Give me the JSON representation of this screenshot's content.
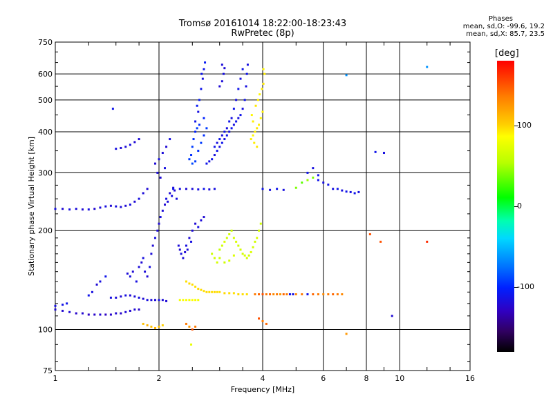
{
  "title_line1": "Tromsø 20161014 18:22:00-18:23:43",
  "title_line2": "RwPretec (8p)",
  "phase_info": {
    "heading": "Phases",
    "o_line": "mean, sd,O: -99.6, 19.2",
    "x_line": "mean, sd,X: 85.7, 23.5"
  },
  "colorbar": {
    "unit": "[deg]",
    "ticks": [
      {
        "label": "100",
        "value": 100
      },
      {
        "label": "0",
        "value": 0
      },
      {
        "label": "-100",
        "value": -100
      }
    ],
    "range": [
      -180,
      180
    ],
    "colors": [
      "#000000",
      "#300060",
      "#3000c0",
      "#0020ff",
      "#0070ff",
      "#00d8ff",
      "#00ffb0",
      "#00ff00",
      "#b8ff00",
      "#ffff00",
      "#ffd000",
      "#ff7a00",
      "#ff0000"
    ]
  },
  "chart_data": {
    "type": "scatter",
    "title": "Tromsø 20161014 18:22:00-18:23:43",
    "subtitle": "RwPretec (8p)",
    "xlabel": "Frequency [MHz]",
    "ylabel": "Stationary phase Virtual Height [km]",
    "xscale": "log2",
    "yscale": "log",
    "xlim": [
      1,
      16
    ],
    "ylim": [
      75,
      750
    ],
    "x_ticks": [
      {
        "label": "1",
        "value": 1
      },
      {
        "label": "2",
        "value": 2
      },
      {
        "label": "4",
        "value": 4
      },
      {
        "label": "6",
        "value": 6
      },
      {
        "label": "8",
        "value": 8
      },
      {
        "label": "10",
        "value": 10
      },
      {
        "label": "16",
        "value": 16
      }
    ],
    "x_gridlines": [
      2,
      4,
      6,
      8,
      10
    ],
    "y_ticks": [
      {
        "label": "75",
        "value": 75
      },
      {
        "label": "100",
        "value": 100
      },
      {
        "label": "200",
        "value": 200
      },
      {
        "label": "300",
        "value": 300
      },
      {
        "label": "400",
        "value": 400
      },
      {
        "label": "500",
        "value": 500
      },
      {
        "label": "600",
        "value": 600
      },
      {
        "label": "750",
        "value": 750
      }
    ],
    "y_gridlines": [
      100,
      200,
      300,
      400,
      500,
      600
    ],
    "grid": true,
    "points": [
      [
        1.0,
        115,
        -110
      ],
      [
        1.05,
        114,
        -112
      ],
      [
        1.1,
        113,
        -110
      ],
      [
        1.15,
        112,
        -115
      ],
      [
        1.2,
        112,
        -112
      ],
      [
        1.25,
        111,
        -118
      ],
      [
        1.3,
        111,
        -115
      ],
      [
        1.35,
        111,
        -112
      ],
      [
        1.4,
        111,
        -118
      ],
      [
        1.45,
        111,
        -115
      ],
      [
        1.5,
        112,
        -112
      ],
      [
        1.55,
        112,
        -115
      ],
      [
        1.6,
        113,
        -110
      ],
      [
        1.65,
        114,
        -112
      ],
      [
        1.7,
        115,
        -110
      ],
      [
        1.75,
        115,
        -115
      ],
      [
        1.0,
        118,
        -105
      ],
      [
        1.05,
        119,
        -102
      ],
      [
        1.08,
        120,
        -100
      ],
      [
        1.0,
        233,
        -105
      ],
      [
        1.05,
        233,
        -110
      ],
      [
        1.1,
        232,
        -105
      ],
      [
        1.15,
        233,
        -108
      ],
      [
        1.2,
        232,
        -110
      ],
      [
        1.25,
        232,
        -105
      ],
      [
        1.3,
        233,
        -112
      ],
      [
        1.35,
        235,
        -108
      ],
      [
        1.4,
        237,
        -105
      ],
      [
        1.45,
        238,
        -110
      ],
      [
        1.5,
        237,
        -105
      ],
      [
        1.55,
        236,
        -108
      ],
      [
        1.6,
        238,
        -110
      ],
      [
        1.65,
        240,
        -105
      ],
      [
        1.7,
        245,
        -110
      ],
      [
        1.75,
        250,
        -105
      ],
      [
        1.8,
        260,
        -108
      ],
      [
        1.85,
        268,
        -110
      ],
      [
        1.5,
        355,
        -105
      ],
      [
        1.55,
        357,
        -110
      ],
      [
        1.6,
        360,
        -108
      ],
      [
        1.65,
        365,
        -105
      ],
      [
        1.7,
        372,
        -110
      ],
      [
        1.75,
        380,
        -108
      ],
      [
        1.47,
        470,
        -100
      ],
      [
        1.45,
        125,
        -105
      ],
      [
        1.5,
        125,
        -108
      ],
      [
        1.55,
        126,
        -110
      ],
      [
        1.6,
        127,
        -105
      ],
      [
        1.65,
        127,
        -110
      ],
      [
        1.7,
        126,
        -108
      ],
      [
        1.75,
        125,
        -105
      ],
      [
        1.8,
        124,
        -110
      ],
      [
        1.85,
        123,
        -105
      ],
      [
        1.9,
        123,
        -108
      ],
      [
        1.95,
        123,
        -110
      ],
      [
        2.0,
        123,
        -105
      ],
      [
        2.05,
        123,
        -108
      ],
      [
        2.1,
        122,
        -110
      ],
      [
        1.25,
        127,
        -100
      ],
      [
        1.28,
        130,
        -105
      ],
      [
        1.32,
        137,
        -110
      ],
      [
        1.35,
        140,
        -105
      ],
      [
        1.4,
        145,
        -100
      ],
      [
        1.62,
        148,
        -108
      ],
      [
        1.65,
        145,
        -105
      ],
      [
        1.68,
        150,
        -110
      ],
      [
        1.72,
        140,
        -105
      ],
      [
        1.75,
        155,
        -108
      ],
      [
        1.78,
        160,
        -110
      ],
      [
        1.8,
        165,
        -105
      ],
      [
        1.82,
        150,
        -108
      ],
      [
        1.85,
        145,
        -110
      ],
      [
        1.88,
        155,
        -105
      ],
      [
        1.9,
        170,
        -108
      ],
      [
        1.92,
        180,
        -110
      ],
      [
        1.95,
        190,
        -105
      ],
      [
        1.98,
        200,
        -108
      ],
      [
        2.0,
        210,
        -110
      ],
      [
        2.02,
        220,
        -105
      ],
      [
        2.05,
        230,
        -108
      ],
      [
        2.08,
        240,
        -110
      ],
      [
        2.1,
        250,
        -105
      ],
      [
        2.12,
        245,
        -108
      ],
      [
        2.15,
        260,
        -110
      ],
      [
        2.18,
        255,
        -105
      ],
      [
        2.2,
        270,
        -108
      ],
      [
        2.22,
        265,
        -110
      ],
      [
        2.25,
        250,
        -105
      ],
      [
        2.28,
        180,
        -108
      ],
      [
        2.3,
        175,
        -110
      ],
      [
        2.32,
        170,
        -105
      ],
      [
        2.35,
        165,
        -108
      ],
      [
        2.38,
        172,
        -110
      ],
      [
        2.4,
        180,
        -105
      ],
      [
        2.42,
        175,
        -108
      ],
      [
        2.45,
        190,
        -110
      ],
      [
        2.48,
        185,
        -105
      ],
      [
        2.5,
        200,
        -108
      ],
      [
        2.55,
        210,
        -110
      ],
      [
        2.6,
        205,
        -105
      ],
      [
        2.65,
        215,
        -108
      ],
      [
        2.7,
        220,
        -110
      ],
      [
        1.95,
        320,
        -110
      ],
      [
        2.0,
        330,
        -105
      ],
      [
        2.05,
        345,
        -108
      ],
      [
        2.1,
        360,
        -110
      ],
      [
        2.15,
        380,
        -105
      ],
      [
        1.98,
        300,
        -108
      ],
      [
        2.02,
        290,
        -110
      ],
      [
        2.08,
        310,
        -105
      ],
      [
        2.2,
        268,
        -100
      ],
      [
        2.3,
        268,
        -105
      ],
      [
        2.4,
        268,
        -110
      ],
      [
        2.5,
        268,
        -108
      ],
      [
        2.6,
        267,
        -105
      ],
      [
        2.7,
        268,
        -100
      ],
      [
        2.8,
        267,
        -108
      ],
      [
        2.9,
        268,
        -105
      ],
      [
        2.55,
        430,
        -100
      ],
      [
        2.6,
        460,
        -105
      ],
      [
        2.62,
        500,
        -95
      ],
      [
        2.65,
        540,
        -100
      ],
      [
        2.68,
        580,
        -105
      ],
      [
        2.7,
        620,
        -100
      ],
      [
        2.72,
        650,
        -95
      ],
      [
        2.66,
        600,
        -100
      ],
      [
        2.58,
        480,
        -95
      ],
      [
        2.55,
        400,
        -90
      ],
      [
        2.52,
        380,
        -85
      ],
      [
        2.5,
        360,
        -80
      ],
      [
        2.48,
        340,
        -85
      ],
      [
        2.45,
        330,
        -80
      ],
      [
        2.5,
        320,
        -75
      ],
      [
        2.55,
        325,
        -80
      ],
      [
        2.6,
        350,
        -85
      ],
      [
        2.65,
        370,
        -80
      ],
      [
        2.7,
        390,
        -85
      ],
      [
        2.75,
        410,
        -80
      ],
      [
        2.7,
        440,
        -90
      ],
      [
        2.62,
        420,
        -85
      ],
      [
        2.58,
        410,
        -80
      ],
      [
        2.75,
        320,
        -100
      ],
      [
        2.8,
        325,
        -105
      ],
      [
        2.85,
        330,
        -100
      ],
      [
        2.9,
        340,
        -105
      ],
      [
        2.95,
        350,
        -100
      ],
      [
        3.0,
        360,
        -105
      ],
      [
        3.05,
        370,
        -100
      ],
      [
        3.1,
        380,
        -105
      ],
      [
        3.15,
        390,
        -100
      ],
      [
        3.2,
        400,
        -105
      ],
      [
        3.25,
        410,
        -100
      ],
      [
        3.3,
        420,
        -105
      ],
      [
        3.35,
        430,
        -100
      ],
      [
        3.4,
        440,
        -105
      ],
      [
        3.45,
        450,
        -100
      ],
      [
        3.5,
        470,
        -105
      ],
      [
        3.55,
        500,
        -100
      ],
      [
        3.58,
        550,
        -105
      ],
      [
        3.6,
        600,
        -100
      ],
      [
        3.62,
        640,
        -105
      ],
      [
        3.5,
        620,
        -100
      ],
      [
        3.45,
        580,
        -105
      ],
      [
        3.4,
        540,
        -100
      ],
      [
        3.35,
        500,
        -105
      ],
      [
        3.3,
        470,
        -100
      ],
      [
        3.25,
        440,
        -105
      ],
      [
        3.2,
        430,
        -100
      ],
      [
        3.15,
        410,
        -105
      ],
      [
        3.1,
        400,
        -100
      ],
      [
        3.05,
        390,
        -105
      ],
      [
        3.0,
        380,
        -100
      ],
      [
        2.95,
        370,
        -105
      ],
      [
        2.9,
        360,
        -100
      ],
      [
        3.0,
        550,
        -110
      ],
      [
        3.05,
        570,
        -108
      ],
      [
        3.08,
        600,
        -105
      ],
      [
        3.1,
        625,
        -110
      ],
      [
        3.05,
        640,
        -108
      ],
      [
        3.7,
        380,
        100
      ],
      [
        3.75,
        390,
        95
      ],
      [
        3.8,
        400,
        100
      ],
      [
        3.85,
        410,
        105
      ],
      [
        3.9,
        420,
        100
      ],
      [
        3.95,
        440,
        95
      ],
      [
        4.0,
        460,
        100
      ],
      [
        3.82,
        480,
        105
      ],
      [
        3.88,
        500,
        100
      ],
      [
        3.92,
        520,
        95
      ],
      [
        3.98,
        540,
        100
      ],
      [
        4.02,
        560,
        105
      ],
      [
        4.05,
        600,
        100
      ],
      [
        4.02,
        620,
        95
      ],
      [
        3.75,
        430,
        100
      ],
      [
        3.72,
        450,
        95
      ],
      [
        3.78,
        370,
        100
      ],
      [
        3.85,
        360,
        105
      ],
      [
        3.0,
        175,
        65
      ],
      [
        3.05,
        180,
        70
      ],
      [
        3.1,
        185,
        75
      ],
      [
        3.15,
        190,
        72
      ],
      [
        3.2,
        195,
        70
      ],
      [
        3.25,
        200,
        68
      ],
      [
        3.3,
        190,
        72
      ],
      [
        3.35,
        185,
        75
      ],
      [
        3.4,
        180,
        70
      ],
      [
        3.45,
        175,
        72
      ],
      [
        3.5,
        170,
        70
      ],
      [
        3.55,
        168,
        75
      ],
      [
        3.6,
        165,
        72
      ],
      [
        3.65,
        168,
        70
      ],
      [
        3.7,
        172,
        75
      ],
      [
        3.75,
        178,
        72
      ],
      [
        3.8,
        185,
        70
      ],
      [
        3.85,
        190,
        75
      ],
      [
        3.9,
        200,
        72
      ],
      [
        3.95,
        210,
        70
      ],
      [
        3.0,
        165,
        68
      ],
      [
        2.95,
        160,
        72
      ],
      [
        2.9,
        165,
        70
      ],
      [
        2.85,
        170,
        68
      ],
      [
        3.1,
        160,
        70
      ],
      [
        3.2,
        162,
        72
      ],
      [
        3.3,
        168,
        75
      ],
      [
        2.4,
        140,
        110
      ],
      [
        2.45,
        138,
        115
      ],
      [
        2.5,
        137,
        112
      ],
      [
        2.55,
        135,
        110
      ],
      [
        2.6,
        133,
        115
      ],
      [
        2.65,
        132,
        112
      ],
      [
        2.7,
        131,
        110
      ],
      [
        2.75,
        130,
        115
      ],
      [
        2.8,
        130,
        112
      ],
      [
        2.85,
        130,
        110
      ],
      [
        2.9,
        130,
        115
      ],
      [
        2.95,
        130,
        112
      ],
      [
        3.0,
        130,
        110
      ],
      [
        3.1,
        129,
        115
      ],
      [
        3.2,
        129,
        112
      ],
      [
        3.3,
        129,
        110
      ],
      [
        3.4,
        128,
        115
      ],
      [
        3.5,
        128,
        112
      ],
      [
        3.6,
        128,
        110
      ],
      [
        2.3,
        123,
        85
      ],
      [
        2.35,
        123,
        90
      ],
      [
        2.4,
        123,
        88
      ],
      [
        2.45,
        123,
        85
      ],
      [
        2.5,
        123,
        90
      ],
      [
        2.55,
        123,
        88
      ],
      [
        2.6,
        123,
        85
      ],
      [
        3.8,
        128,
        150
      ],
      [
        3.9,
        128,
        155
      ],
      [
        4.0,
        128,
        160
      ],
      [
        4.1,
        128,
        150
      ],
      [
        4.2,
        128,
        155
      ],
      [
        4.3,
        128,
        145
      ],
      [
        4.4,
        128,
        150
      ],
      [
        4.5,
        128,
        140
      ],
      [
        4.6,
        128,
        155
      ],
      [
        4.7,
        128,
        150
      ],
      [
        4.8,
        128,
        -100
      ],
      [
        4.9,
        128,
        -105
      ],
      [
        5.0,
        128,
        145
      ],
      [
        5.2,
        128,
        150
      ],
      [
        5.4,
        128,
        -100
      ],
      [
        5.6,
        128,
        155
      ],
      [
        5.8,
        128,
        150
      ],
      [
        6.0,
        128,
        145
      ],
      [
        6.2,
        128,
        150
      ],
      [
        6.4,
        128,
        155
      ],
      [
        6.6,
        128,
        150
      ],
      [
        6.8,
        128,
        145
      ],
      [
        4.0,
        268,
        -100
      ],
      [
        4.2,
        266,
        -105
      ],
      [
        4.4,
        268,
        -100
      ],
      [
        4.6,
        266,
        -105
      ],
      [
        5.0,
        270,
        50
      ],
      [
        5.2,
        280,
        45
      ],
      [
        5.4,
        285,
        55
      ],
      [
        5.6,
        290,
        50
      ],
      [
        5.8,
        285,
        -100
      ],
      [
        6.0,
        280,
        -105
      ],
      [
        6.2,
        276,
        -100
      ],
      [
        6.4,
        268,
        -105
      ],
      [
        6.6,
        268,
        -100
      ],
      [
        6.8,
        265,
        -105
      ],
      [
        7.0,
        263,
        -100
      ],
      [
        7.2,
        262,
        -105
      ],
      [
        7.4,
        260,
        -100
      ],
      [
        7.6,
        262,
        -105
      ],
      [
        5.4,
        300,
        -100
      ],
      [
        5.6,
        310,
        -105
      ],
      [
        5.8,
        295,
        -100
      ],
      [
        2.05,
        103,
        120
      ],
      [
        2.0,
        102,
        125
      ],
      [
        1.95,
        101,
        130
      ],
      [
        1.9,
        102,
        125
      ],
      [
        1.85,
        103,
        130
      ],
      [
        1.8,
        104,
        125
      ],
      [
        2.4,
        104,
        150
      ],
      [
        2.45,
        102,
        140
      ],
      [
        2.5,
        100,
        160
      ],
      [
        2.55,
        102,
        150
      ],
      [
        2.48,
        90,
        80
      ],
      [
        3.9,
        108,
        160
      ],
      [
        4.0,
        106,
        150
      ],
      [
        4.1,
        104,
        155
      ],
      [
        8.5,
        347,
        -100
      ],
      [
        9.0,
        345,
        -105
      ],
      [
        8.8,
        185,
        160
      ],
      [
        9.5,
        110,
        -110
      ],
      [
        12.0,
        630,
        -50
      ],
      [
        12.0,
        185,
        170
      ],
      [
        7.0,
        595,
        -50
      ],
      [
        7.0,
        97,
        140
      ],
      [
        8.2,
        195,
        160
      ]
    ]
  }
}
